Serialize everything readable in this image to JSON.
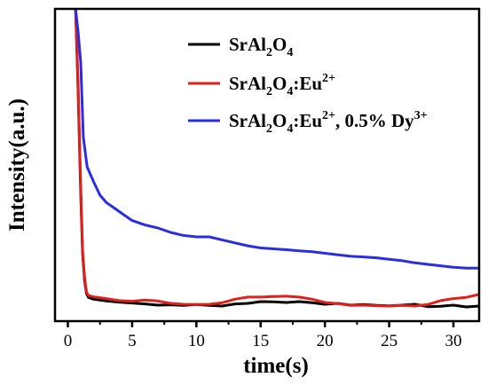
{
  "chart_data": {
    "type": "line",
    "xlabel": "time(s)",
    "ylabel": "Intensity(a.u.)",
    "xlim": [
      -1,
      32
    ],
    "ylim": [
      0,
      100
    ],
    "xticks": [
      0,
      5,
      10,
      15,
      20,
      25,
      30
    ],
    "xtick_labels": [
      "0",
      "5",
      "10",
      "15",
      "20",
      "25",
      "30"
    ],
    "y_tick_labels_shown": false,
    "grid": false,
    "legend_position": "top-right",
    "series": [
      {
        "name": "SrAl2O4",
        "legend_label": {
          "base": "SrAl",
          "sub1": "2",
          "mid": "O",
          "sub2": "4",
          "suffix": "",
          "sup": "",
          "tail": ""
        },
        "color": "#000000",
        "x": [
          0.6,
          0.8,
          1.0,
          1.15,
          1.3,
          1.45,
          1.6,
          2.0,
          3,
          4,
          5,
          6,
          7,
          8,
          9,
          10,
          11,
          12,
          13,
          14,
          15,
          16,
          17,
          18,
          19,
          20,
          21,
          22,
          23,
          24,
          25,
          26,
          27,
          28,
          29,
          30,
          31,
          32
        ],
        "y": [
          100,
          72,
          38,
          18,
          9,
          4.5,
          3.2,
          2.6,
          2.0,
          1.6,
          1.3,
          1.0,
          0.6,
          0.7,
          0.5,
          0.8,
          0.5,
          0.3,
          1.0,
          1.2,
          1.8,
          1.7,
          1.5,
          1.8,
          1.4,
          0.9,
          1.2,
          0.6,
          0.8,
          0.5,
          0.4,
          0.6,
          0.9,
          0.1,
          0.2,
          0.6,
          0.0,
          0.3
        ]
      },
      {
        "name": "SrAl2O4:Eu2+",
        "legend_label": {
          "base": "SrAl",
          "sub1": "2",
          "mid": "O",
          "sub2": "4",
          "suffix": ":Eu",
          "sup": "2+",
          "tail": ""
        },
        "color": "#e0201b",
        "x": [
          0.6,
          0.8,
          1.0,
          1.15,
          1.3,
          1.45,
          1.6,
          2.0,
          3,
          4,
          5,
          6,
          7,
          8,
          9,
          10,
          11,
          12,
          13,
          14,
          15,
          16,
          17,
          18,
          19,
          20,
          21,
          22,
          23,
          24,
          25,
          26,
          27,
          28,
          29,
          30,
          31,
          32
        ],
        "y": [
          100,
          74,
          40,
          19,
          10,
          5.0,
          3.8,
          3.4,
          2.8,
          2.1,
          1.9,
          2.3,
          2.0,
          1.2,
          0.9,
          0.8,
          0.9,
          1.4,
          2.6,
          3.3,
          3.3,
          3.5,
          3.6,
          3.3,
          2.6,
          1.5,
          1.1,
          0.5,
          0.6,
          0.4,
          0.3,
          0.5,
          0.3,
          0.8,
          2.1,
          2.8,
          3.2,
          4.2
        ]
      },
      {
        "name": "SrAl2O4:Eu2+, 0.5% Dy3+",
        "legend_label": {
          "base": "SrAl",
          "sub1": "2",
          "mid": "O",
          "sub2": "4",
          "suffix": ":Eu",
          "sup": "2+",
          "tail": ", 0.5% Dy",
          "sup2": "3+"
        },
        "color": "#2a2ee0",
        "x": [
          0.6,
          0.8,
          1.0,
          1.2,
          1.5,
          2.0,
          2.5,
          3,
          3.5,
          4,
          5,
          6,
          7,
          8,
          9,
          10,
          11,
          12,
          13,
          14,
          15,
          16,
          17,
          18,
          19,
          20,
          21,
          22,
          23,
          24,
          25,
          26,
          27,
          28,
          29,
          30,
          31,
          32
        ],
        "y": [
          100,
          92,
          82,
          57,
          47,
          42,
          37.5,
          35,
          33.5,
          32,
          29,
          27.5,
          26.5,
          25,
          24,
          23.5,
          23.5,
          22.5,
          21.5,
          20.5,
          19.8,
          19.5,
          19.2,
          18.8,
          18.5,
          18.0,
          17.5,
          17.0,
          16.8,
          16.5,
          16.0,
          15.5,
          14.8,
          14.3,
          13.8,
          13.3,
          13.0,
          13.0
        ]
      }
    ]
  }
}
